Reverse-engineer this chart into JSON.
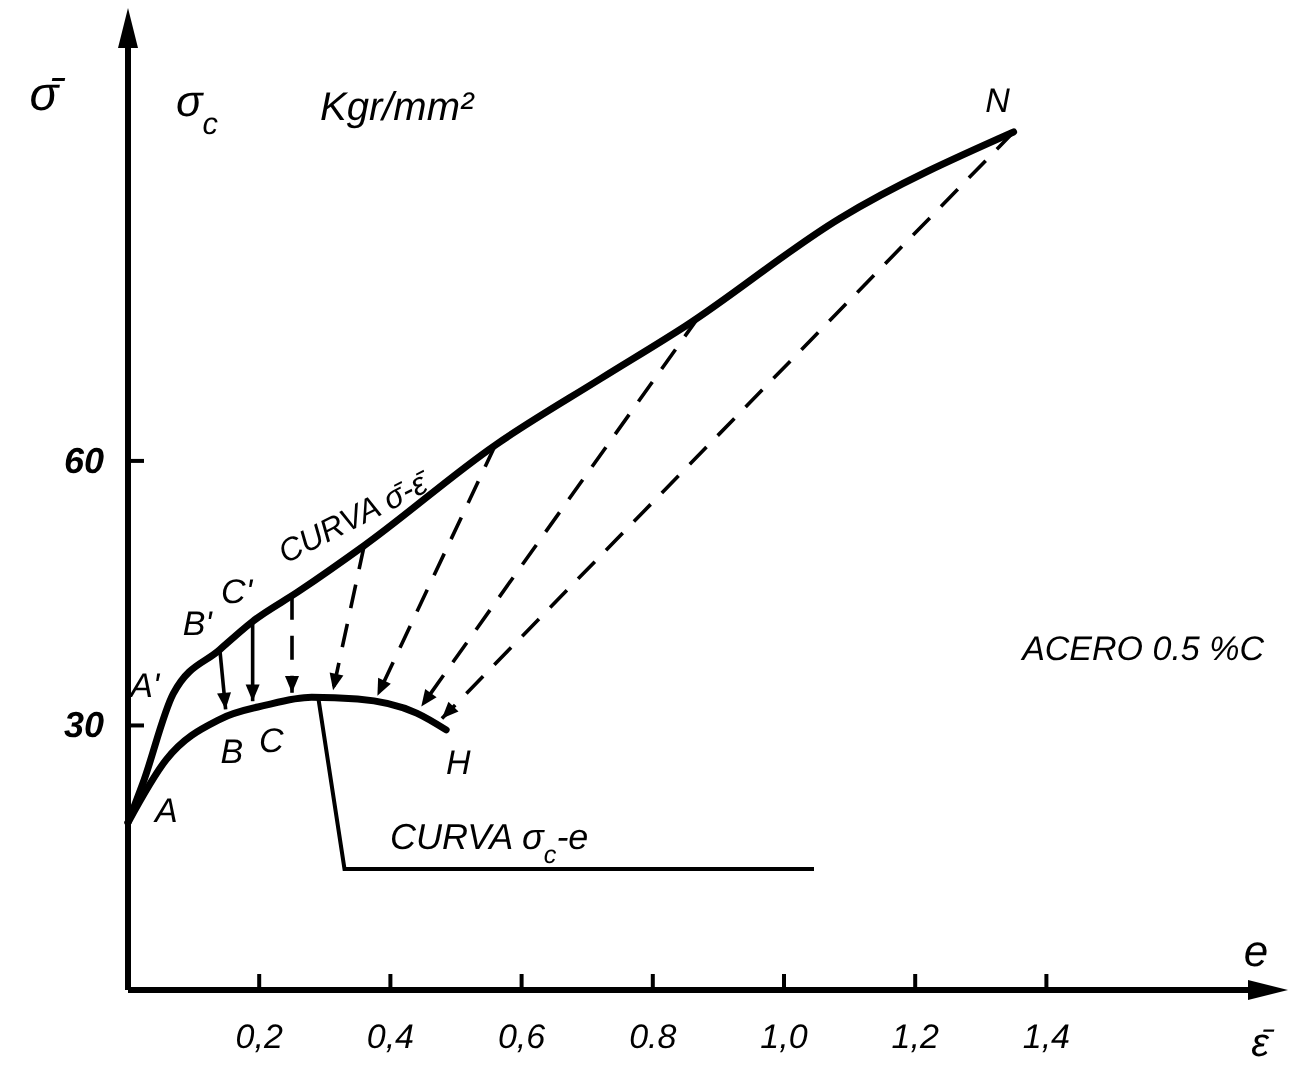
{
  "chart_data": {
    "type": "line",
    "ylabel": "σ̄",
    "xlabel": "e",
    "xlim": [
      0,
      1.75
    ],
    "ylim": [
      0,
      110
    ],
    "xticks": [
      {
        "value": 0.2,
        "label": "0,2"
      },
      {
        "value": 0.4,
        "label": "0,4"
      },
      {
        "value": 0.6,
        "label": "0,6"
      },
      {
        "value": 0.8,
        "label": "0.8"
      },
      {
        "value": 1.0,
        "label": "1,0"
      },
      {
        "value": 1.2,
        "label": "1,2"
      },
      {
        "value": 1.4,
        "label": "1,4"
      }
    ],
    "yticks": [
      30,
      60
    ],
    "grid": false,
    "marker": "none",
    "series": [
      {
        "name": "CURVA σ̄-ε̄",
        "color": "#000000",
        "line_style": "solid",
        "x": [
          0,
          0.023,
          0.069,
          0.14,
          0.19,
          0.26,
          0.36,
          0.56,
          0.72,
          0.85,
          1.085,
          1.35
        ],
        "values": [
          19,
          23.5,
          33.6,
          38.6,
          41.8,
          45.2,
          50.4,
          61.8,
          69.3,
          75.3,
          87.5,
          97.3
        ]
      },
      {
        "name": "CURVA σ$_{c}$-e",
        "color": "#000000",
        "line_style": "solid",
        "x": [
          0,
          0.058,
          0.14,
          0.21,
          0.28,
          0.35,
          0.44,
          0.485
        ],
        "values": [
          19,
          26.1,
          30.7,
          32.3,
          33.2,
          33,
          31.4,
          29.5
        ]
      }
    ],
    "annotations": [
      "σ$_{c}$",
      "Kgr/mm²",
      "ACERO 0.5 %C",
      "ε̄",
      {
        "text": "A'",
        "x": 0.05,
        "y": 31
      },
      {
        "text": "B'",
        "x": 0.13,
        "y": 38
      },
      {
        "text": "C'",
        "x": 0.19,
        "y": 41.6
      },
      {
        "text": "N",
        "x": 1.35,
        "y": 97.3
      },
      {
        "text": "A",
        "x": 0.04,
        "y": 24
      },
      {
        "text": "B",
        "x": 0.14,
        "y": 30.7
      },
      {
        "text": "C",
        "x": 0.2,
        "y": 32
      },
      {
        "text": "H",
        "x": 0.485,
        "y": 29.5
      }
    ]
  }
}
